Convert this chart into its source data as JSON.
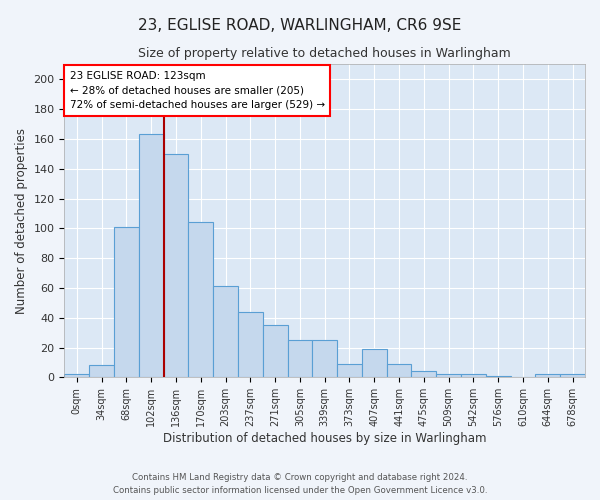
{
  "title": "23, EGLISE ROAD, WARLINGHAM, CR6 9SE",
  "subtitle": "Size of property relative to detached houses in Warlingham",
  "xlabel": "Distribution of detached houses by size in Warlingham",
  "ylabel": "Number of detached properties",
  "bar_color": "#c5d8ed",
  "bar_edge_color": "#5a9fd4",
  "background_color": "#dce8f5",
  "grid_color": "#ffffff",
  "fig_background": "#f0f4fa",
  "bin_labels": [
    "0sqm",
    "34sqm",
    "68sqm",
    "102sqm",
    "136sqm",
    "170sqm",
    "203sqm",
    "237sqm",
    "271sqm",
    "305sqm",
    "339sqm",
    "373sqm",
    "407sqm",
    "441sqm",
    "475sqm",
    "509sqm",
    "542sqm",
    "576sqm",
    "610sqm",
    "644sqm",
    "678sqm"
  ],
  "bar_values": [
    2,
    8,
    101,
    163,
    150,
    104,
    61,
    44,
    35,
    25,
    25,
    9,
    19,
    9,
    4,
    2,
    2,
    1,
    0,
    2,
    2
  ],
  "ylim": [
    0,
    210
  ],
  "yticks": [
    0,
    20,
    40,
    60,
    80,
    100,
    120,
    140,
    160,
    180,
    200
  ],
  "red_line_x": 4.0,
  "annotation_text": "23 EGLISE ROAD: 123sqm\n← 28% of detached houses are smaller (205)\n72% of semi-detached houses are larger (529) →",
  "footer_line1": "Contains HM Land Registry data © Crown copyright and database right 2024.",
  "footer_line2": "Contains public sector information licensed under the Open Government Licence v3.0.",
  "red_line_color": "#aa0000"
}
